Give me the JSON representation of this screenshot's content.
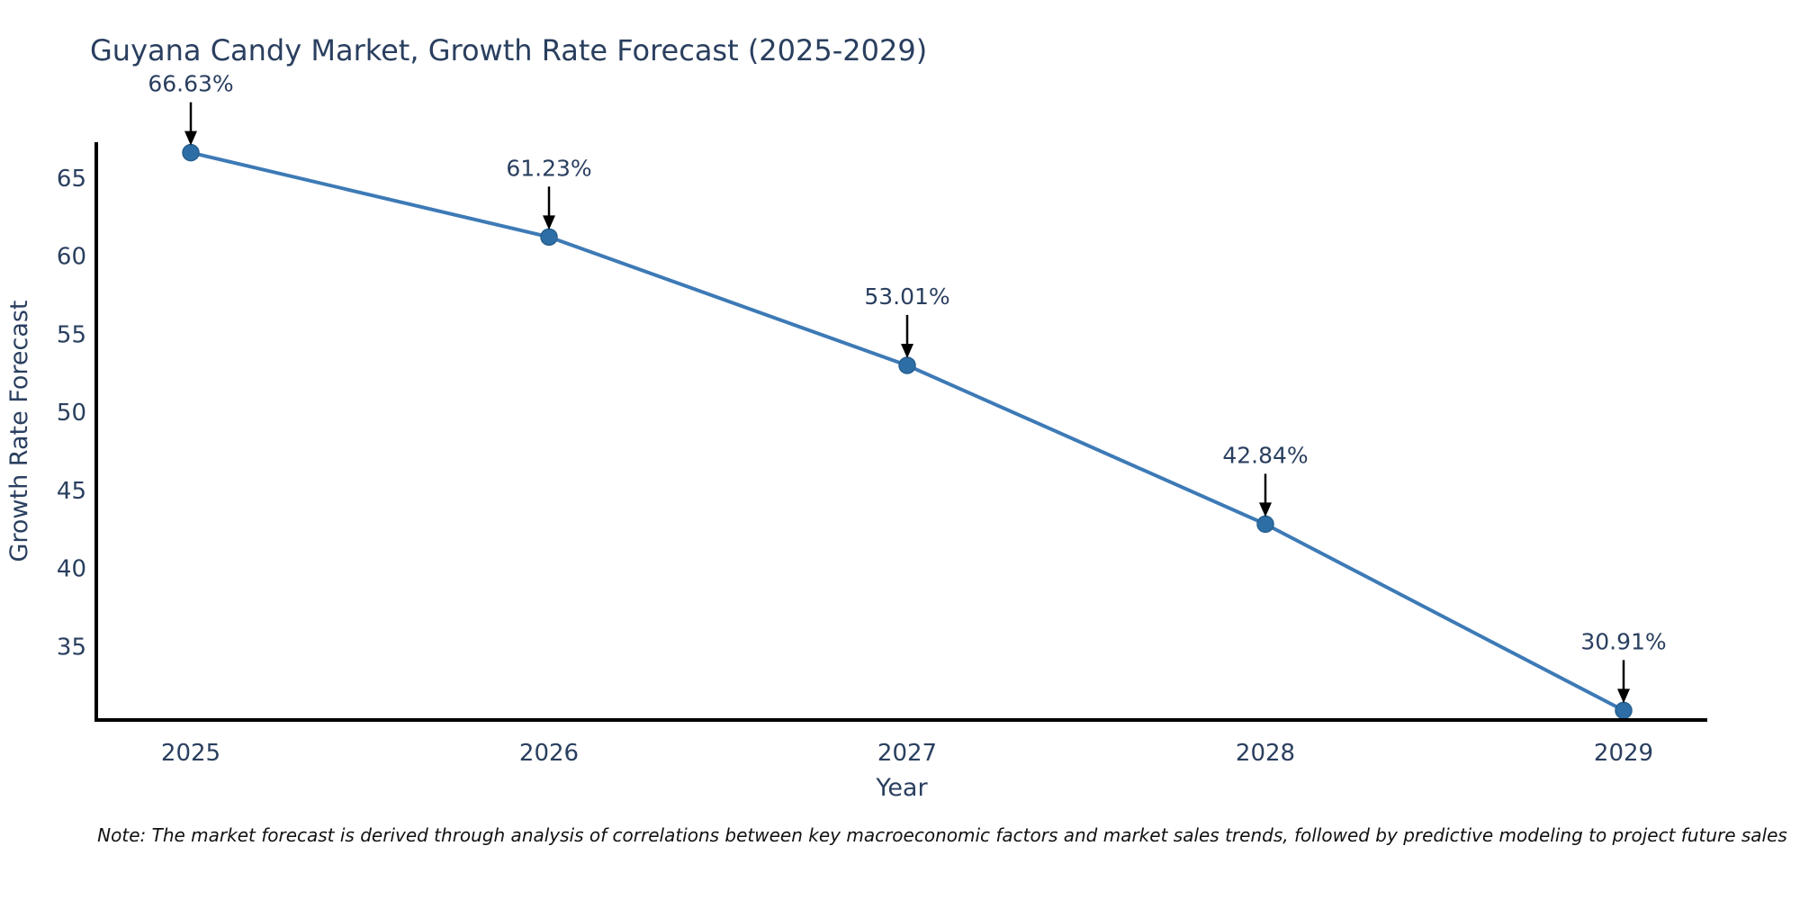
{
  "chart": {
    "note": "Note: The market forecast is derived through analysis of correlations between key macroeconomic factors and market sales trends, followed by predictive modeling to project future sales",
    "colors": {
      "line": "#3d7ab6",
      "marker_fill": "#2e6ea6",
      "marker_stroke": "#27608f",
      "axis_line": "#000000",
      "text": "#2a3f5f",
      "arrow": "#000000",
      "background": "#ffffff"
    }
  },
  "chart_data": {
    "type": "line",
    "title": "Guyana Candy Market, Growth Rate Forecast (2025-2029)",
    "xlabel": "Year",
    "ylabel": "Growth Rate Forecast",
    "categories": [
      "2025",
      "2026",
      "2027",
      "2028",
      "2029"
    ],
    "values": [
      66.63,
      61.23,
      53.01,
      42.84,
      30.91
    ],
    "point_labels": [
      "66.63%",
      "61.23%",
      "53.01%",
      "42.84%",
      "30.91%"
    ],
    "y_ticks": [
      35,
      40,
      45,
      50,
      55,
      60,
      65
    ],
    "ylim": [
      30.3,
      67.3
    ],
    "grid": false,
    "legend": "none",
    "annotation_arrows": true,
    "marker_style": "circle"
  }
}
